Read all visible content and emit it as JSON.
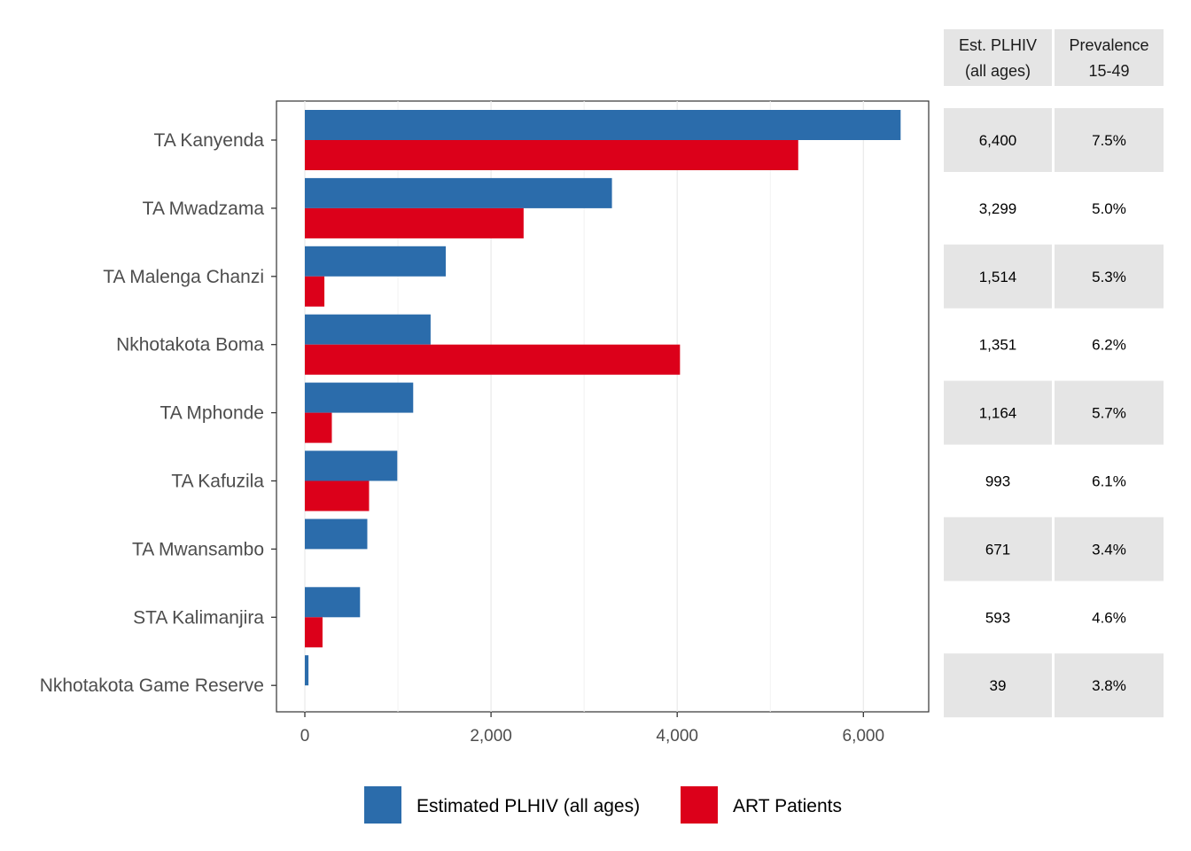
{
  "chart_data": {
    "type": "bar",
    "orientation": "horizontal",
    "categories": [
      "TA Kanyenda",
      "TA Mwadzama",
      "TA Malenga Chanzi",
      "Nkhotakota Boma",
      "TA Mphonde",
      "TA Kafuzila",
      "TA Mwansambo",
      "STA Kalimanjira",
      "Nkhotakota Game Reserve"
    ],
    "series": [
      {
        "name": "Estimated PLHIV (all ages)",
        "color": "#2B6CAB",
        "values": [
          6400,
          3299,
          1514,
          1351,
          1164,
          993,
          671,
          593,
          39
        ]
      },
      {
        "name": "ART Patients",
        "color": "#DC001A",
        "values": [
          5300,
          2350,
          210,
          4030,
          290,
          690,
          0,
          190,
          0
        ]
      }
    ],
    "xlim": [
      -300,
      6700
    ],
    "x_ticks": [
      0,
      2000,
      4000,
      6000
    ],
    "x_tick_labels": [
      "0",
      "2,000",
      "4,000",
      "6,000"
    ],
    "grid": true,
    "legend_position": "bottom"
  },
  "table": {
    "headers": [
      [
        "Est. PLHIV",
        "(all ages)"
      ],
      [
        "Prevalence",
        "15-49"
      ]
    ],
    "rows": [
      [
        "6,400",
        "7.5%"
      ],
      [
        "3,299",
        "5.0%"
      ],
      [
        "1,514",
        "5.3%"
      ],
      [
        "1,351",
        "6.2%"
      ],
      [
        "1,164",
        "5.7%"
      ],
      [
        "993",
        "6.1%"
      ],
      [
        "671",
        "3.4%"
      ],
      [
        "593",
        "4.6%"
      ],
      [
        "39",
        "3.8%"
      ]
    ],
    "shade_color": "#E5E5E5"
  }
}
